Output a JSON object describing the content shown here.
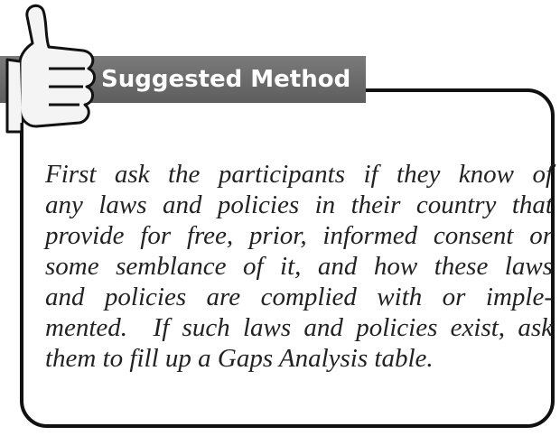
{
  "header": {
    "title": "Suggested Method"
  },
  "body": {
    "lines": [
      "First ask the participants if they know of",
      "any laws and policies in their country that",
      "provide for free, prior, informed consent or",
      "some semblance of it, and how these laws",
      "and policies are complied with or imple-",
      "mented.  If such laws and policies exist, ask",
      "them to fill up a Gaps Analysis table."
    ]
  }
}
